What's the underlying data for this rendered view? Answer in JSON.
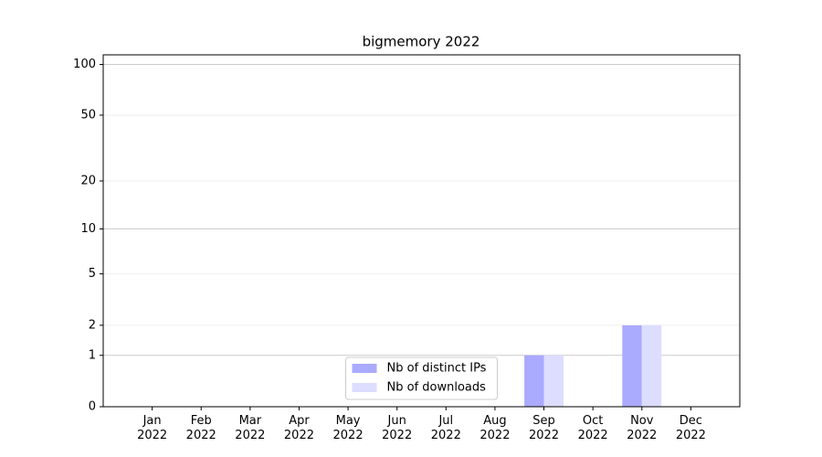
{
  "chart_data": {
    "type": "bar",
    "title": "bigmemory 2022",
    "categories": [
      "Jan\n2022",
      "Feb\n2022",
      "Mar\n2022",
      "Apr\n2022",
      "May\n2022",
      "Jun\n2022",
      "Jul\n2022",
      "Aug\n2022",
      "Sep\n2022",
      "Oct\n2022",
      "Nov\n2022",
      "Dec\n2022"
    ],
    "series": [
      {
        "name": "Nb of distinct IPs",
        "color": "#aaaaff",
        "values": [
          0,
          0,
          0,
          0,
          0,
          0,
          0,
          0,
          1,
          0,
          2,
          0
        ]
      },
      {
        "name": "Nb of downloads",
        "color": "#ddddff",
        "values": [
          0,
          0,
          0,
          0,
          0,
          0,
          0,
          0,
          1,
          0,
          2,
          0
        ]
      }
    ],
    "yscale": "symlog",
    "ylim": [
      0,
      114
    ],
    "yticks": [
      0,
      1,
      2,
      5,
      10,
      20,
      50,
      100
    ],
    "grid": true,
    "legend": "lower center"
  }
}
